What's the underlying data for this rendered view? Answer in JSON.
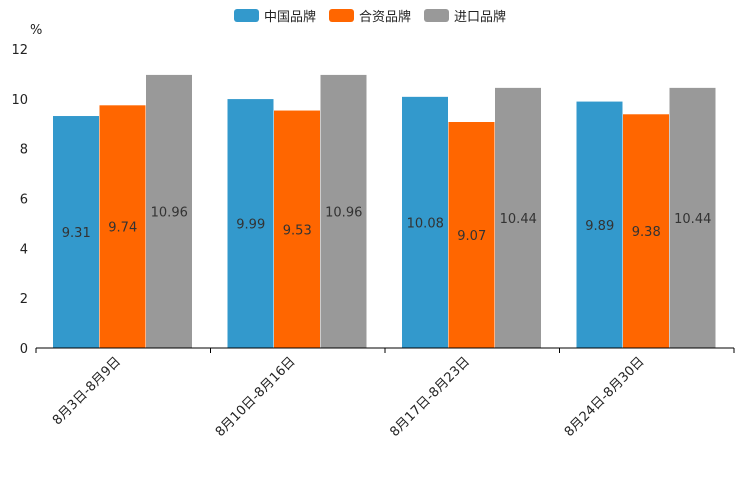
{
  "chart_data": {
    "type": "bar",
    "title": "",
    "xlabel": "",
    "ylabel": "%",
    "ylim": [
      0,
      12
    ],
    "yticks": [
      0,
      2,
      4,
      6,
      8,
      10,
      12
    ],
    "grid": false,
    "legend_position": "top-center",
    "categories": [
      "8月3日-8月9日",
      "8月10日-8月16日",
      "8月17日-8月23日",
      "8月24日-8月30日"
    ],
    "series": [
      {
        "name": "中国品牌",
        "color": "#3399cc",
        "values": [
          9.31,
          9.99,
          10.08,
          9.89
        ],
        "labels": [
          "9.31",
          "9.99",
          "10.08",
          "9.89"
        ]
      },
      {
        "name": "合资品牌",
        "color": "#ff6600",
        "values": [
          9.74,
          9.53,
          9.07,
          9.38
        ],
        "labels": [
          "9.74",
          "9.53",
          "9.07",
          "9.38"
        ]
      },
      {
        "name": "进口品牌",
        "color": "#999999",
        "values": [
          10.96,
          10.96,
          10.44,
          10.44
        ],
        "labels": [
          "10.96",
          "10.96",
          "10.44",
          "10.44"
        ]
      }
    ]
  }
}
